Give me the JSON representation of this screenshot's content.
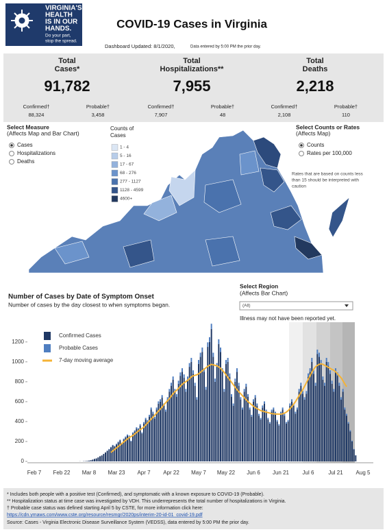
{
  "header": {
    "logo": [
      "VIRGINIA'S",
      "HEALTH",
      "IS IN OUR",
      "HANDS."
    ],
    "logo_tagline": [
      "Do your part,",
      "stop the spread."
    ],
    "title": "COVID-19 Cases in Virginia",
    "updated": "Dashboard Updated: 8/1/2020,",
    "updated_note": "Data entered by 5:00 PM the prior day."
  },
  "summary": [
    {
      "label": [
        "Total",
        "Cases*"
      ],
      "total": "91,782",
      "confirmed_label": "Confirmed†",
      "confirmed": "88,324",
      "probable_label": "Probable†",
      "probable": "3,458"
    },
    {
      "label": [
        "Total",
        "Hospitalizations**"
      ],
      "total": "7,955",
      "confirmed_label": "Confirmed†",
      "confirmed": "7,907",
      "probable_label": "Probable†",
      "probable": "48"
    },
    {
      "label": [
        "Total",
        "Deaths"
      ],
      "total": "2,218",
      "confirmed_label": "Confirmed†",
      "confirmed": "2,108",
      "probable_label": "Probable†",
      "probable": "110"
    }
  ],
  "map": {
    "measure_title": [
      "Select Measure",
      "(Affects Map and Bar Chart)"
    ],
    "measures": [
      "Cases",
      "Hospitalizations",
      "Deaths"
    ],
    "selected_measure": 0,
    "legend_title": [
      "Counts of",
      "Cases"
    ],
    "legend": [
      {
        "label": "1 - 4",
        "color": "#dbe6f4"
      },
      {
        "label": "5 - 16",
        "color": "#b8cde9"
      },
      {
        "label": "17 - 67",
        "color": "#93b2dc"
      },
      {
        "label": "68 - 276",
        "color": "#6b93cb"
      },
      {
        "label": "277 - 1127",
        "color": "#4a72ad"
      },
      {
        "label": "1128 - 4599",
        "color": "#34558a"
      },
      {
        "label": "4600+",
        "color": "#22395f"
      }
    ],
    "rate_title": [
      "Select Counts or Rates",
      "(Affects Map)"
    ],
    "rate_options": [
      "Counts",
      "Rates per 100,000"
    ],
    "selected_rate": 0,
    "note": [
      "Rates that are based on counts less",
      "than 15 should be interpreted with",
      "caution"
    ]
  },
  "region": {
    "title": [
      "Select Region",
      "(Affects Bar Chart)"
    ],
    "selected": "(All)",
    "note": "Illness may not have been reported yet."
  },
  "chart_data": {
    "type": "bar",
    "stacked": true,
    "title": "Number of Cases by Date of Symptom Onset",
    "subtitle": "Number of cases by the day closest to when symptoms began.",
    "categories": [
      "Feb 7",
      null,
      null,
      null,
      null,
      null,
      null,
      null,
      null,
      null,
      null,
      null,
      null,
      null,
      null,
      "Feb 22",
      null,
      null,
      null,
      null,
      null,
      null,
      null,
      null,
      null,
      null,
      null,
      null,
      null,
      null,
      "Mar 8",
      null,
      null,
      null,
      null,
      null,
      null,
      null,
      null,
      null,
      null,
      null,
      null,
      null,
      null,
      "Mar 23",
      null,
      null,
      null,
      null,
      null,
      null,
      null,
      null,
      null,
      null,
      null,
      null,
      null,
      null,
      "Apr 7",
      null,
      null,
      null,
      null,
      null,
      null,
      null,
      null,
      null,
      null,
      null,
      null,
      null,
      null,
      "Apr 22",
      null,
      null,
      null,
      null,
      null,
      null,
      null,
      null,
      null,
      null,
      null,
      null,
      null,
      null,
      "May 7",
      null,
      null,
      null,
      null,
      null,
      null,
      null,
      null,
      null,
      null,
      null,
      null,
      null,
      null,
      "May 22",
      null,
      null,
      null,
      null,
      null,
      null,
      null,
      null,
      null,
      null,
      null,
      null,
      null,
      null,
      "Jun 6",
      null,
      null,
      null,
      null,
      null,
      null,
      null,
      null,
      null,
      null,
      null,
      null,
      null,
      null,
      "Jun 21",
      null,
      null,
      null,
      null,
      null,
      null,
      null,
      null,
      null,
      null,
      null,
      null,
      null,
      null,
      "Jul 6",
      null,
      null,
      null,
      null,
      null,
      null,
      null,
      null,
      null,
      null,
      null,
      null,
      null,
      null,
      "Jul 21",
      null,
      null,
      null,
      null,
      null,
      null,
      null,
      null,
      null,
      null,
      null,
      null,
      null,
      null,
      "Aug 5"
    ],
    "series": [
      {
        "name": "Confirmed Cases",
        "color": "#1f3864",
        "values": [
          0,
          0,
          0,
          0,
          0,
          0,
          0,
          0,
          0,
          0,
          0,
          0,
          0,
          0,
          0,
          0,
          0,
          0,
          0,
          0,
          0,
          0,
          0,
          0,
          0,
          1,
          0,
          2,
          3,
          5,
          8,
          12,
          18,
          25,
          30,
          40,
          52,
          60,
          75,
          90,
          105,
          120,
          140,
          160,
          150,
          170,
          190,
          210,
          180,
          220,
          240,
          260,
          250,
          200,
          280,
          300,
          330,
          320,
          360,
          280,
          380,
          420,
          400,
          450,
          520,
          480,
          430,
          520,
          580,
          600,
          640,
          560,
          500,
          620,
          700,
          760,
          820,
          700,
          650,
          780,
          860,
          900,
          840,
          700,
          820,
          950,
          1000,
          880,
          760,
          620,
          980,
          1050,
          1100,
          900,
          720,
          1150,
          1200,
          1330,
          1050,
          800,
          950,
          1180,
          1100,
          900,
          700,
          980,
          1000,
          850,
          650,
          560,
          800,
          900,
          760,
          620,
          520,
          700,
          750,
          650,
          520,
          450,
          600,
          640,
          560,
          460,
          420,
          540,
          580,
          500,
          420,
          380,
          500,
          520,
          480,
          400,
          360,
          480,
          520,
          460,
          380,
          400,
          560,
          600,
          560,
          480,
          520,
          700,
          760,
          680,
          620,
          680,
          850,
          900,
          1000,
          880,
          760,
          1080,
          1050,
          980,
          820,
          760,
          1000,
          960,
          880,
          780,
          700,
          900,
          860,
          760,
          620,
          700,
          520,
          460,
          380,
          300,
          200,
          120,
          60,
          null,
          null,
          null,
          null
        ]
      },
      {
        "name": "Probable Cases",
        "color": "#4f7ec0",
        "values": [
          0,
          0,
          0,
          0,
          0,
          0,
          0,
          0,
          0,
          0,
          0,
          0,
          0,
          0,
          0,
          0,
          0,
          0,
          0,
          0,
          0,
          0,
          0,
          0,
          0,
          0,
          0,
          0,
          0,
          0,
          0,
          0,
          0,
          0,
          0,
          0,
          0,
          0,
          0,
          0,
          4,
          5,
          6,
          6,
          6,
          7,
          8,
          8,
          7,
          9,
          10,
          10,
          10,
          8,
          11,
          12,
          13,
          13,
          14,
          11,
          15,
          17,
          16,
          18,
          21,
          19,
          17,
          21,
          23,
          24,
          26,
          22,
          20,
          25,
          28,
          30,
          33,
          28,
          26,
          31,
          34,
          36,
          34,
          28,
          33,
          38,
          40,
          35,
          30,
          25,
          39,
          42,
          44,
          36,
          29,
          46,
          48,
          53,
          42,
          32,
          38,
          47,
          44,
          36,
          28,
          39,
          40,
          34,
          26,
          22,
          32,
          36,
          30,
          25,
          21,
          28,
          30,
          26,
          21,
          18,
          24,
          26,
          22,
          18,
          17,
          22,
          23,
          20,
          17,
          15,
          20,
          21,
          19,
          16,
          14,
          19,
          21,
          18,
          15,
          16,
          22,
          24,
          22,
          19,
          21,
          28,
          30,
          27,
          25,
          27,
          34,
          36,
          40,
          35,
          30,
          43,
          42,
          39,
          33,
          30,
          40,
          38,
          35,
          31,
          28,
          36,
          34,
          30,
          25,
          28,
          21,
          18,
          15,
          12,
          8,
          5,
          2,
          null,
          null,
          null,
          null
        ]
      },
      {
        "name": "7-day moving average",
        "type": "line",
        "color": "#f5b335",
        "values": [
          null,
          null,
          null,
          null,
          null,
          null,
          null,
          null,
          null,
          null,
          null,
          null,
          null,
          null,
          null,
          null,
          null,
          null,
          null,
          null,
          null,
          null,
          null,
          null,
          null,
          null,
          null,
          null,
          null,
          null,
          null,
          null,
          null,
          null,
          null,
          null,
          null,
          null,
          null,
          null,
          null,
          null,
          90,
          105,
          120,
          135,
          150,
          165,
          180,
          195,
          210,
          225,
          240,
          250,
          260,
          275,
          290,
          305,
          320,
          330,
          345,
          365,
          385,
          405,
          425,
          445,
          465,
          485,
          505,
          525,
          545,
          570,
          590,
          610,
          630,
          655,
          680,
          700,
          715,
          735,
          755,
          775,
          790,
          800,
          815,
          830,
          850,
          860,
          865,
          870,
          880,
          895,
          910,
          925,
          940,
          955,
          965,
          975,
          970,
          965,
          960,
          950,
          935,
          915,
          895,
          870,
          845,
          820,
          795,
          770,
          745,
          720,
          700,
          680,
          660,
          640,
          620,
          600,
          585,
          570,
          555,
          540,
          530,
          520,
          510,
          505,
          500,
          495,
          490,
          485,
          480,
          478,
          476,
          475,
          474,
          474,
          478,
          485,
          495,
          510,
          530,
          550,
          575,
          600,
          630,
          660,
          690,
          720,
          755,
          790,
          825,
          860,
          895,
          925,
          950,
          965,
          975,
          980,
          975,
          965,
          955,
          945,
          935,
          925,
          915,
          900,
          880,
          860,
          840,
          810,
          780,
          750,
          null,
          null,
          null,
          null,
          null,
          null,
          null,
          null,
          null
        ]
      }
    ],
    "ylim": [
      0,
      1350
    ],
    "yticks": [
      0,
      200,
      400,
      600,
      800,
      1000,
      1200
    ]
  },
  "footnotes": [
    "* Includes both people with a positive test (Confirmed), and symptomatic with a known exposure to COVID-19 (Probable).",
    "** Hospitalization status at time case was investigated by VDH. This underrepresents the total number of hospitalizations in Virginia.",
    "† Probable case status was defined starting April 5 by CSTE, for more information click here:"
  ],
  "link": "https://cdn.ymaws.com/www.cste.org/resource/resmgr/2020ps/interim-20-id-01_covid-19.pdf",
  "source": "Source:  Cases - Virginia Electronic Disease Surveillance System (VEDSS), data entered by 5:00 PM the prior day."
}
